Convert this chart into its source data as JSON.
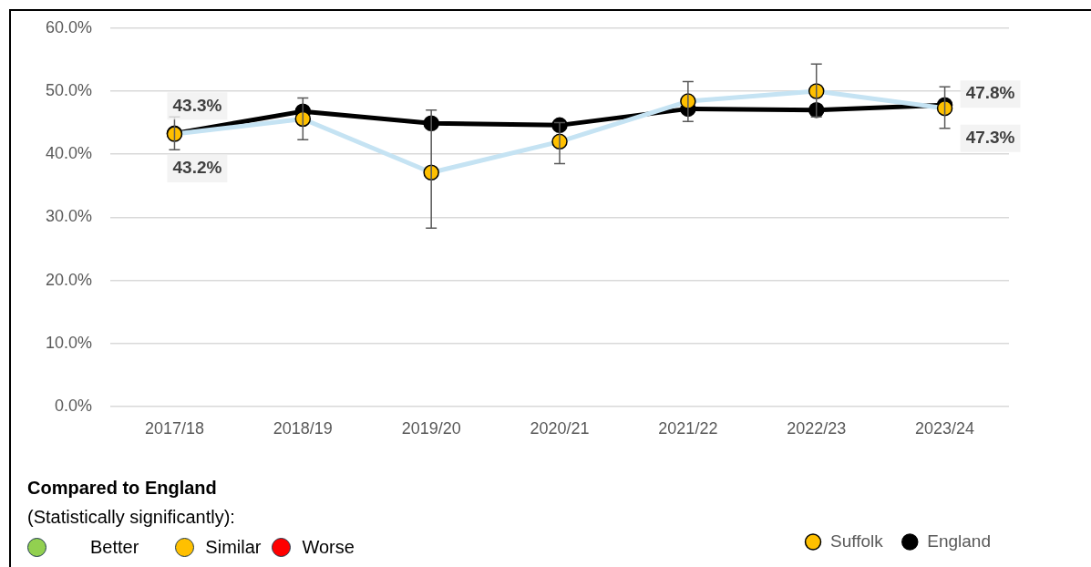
{
  "chart_data": {
    "type": "line",
    "categories": [
      "2017/18",
      "2018/19",
      "2019/20",
      "2020/21",
      "2021/22",
      "2022/23",
      "2023/24"
    ],
    "ylim": [
      0,
      60
    ],
    "yticks": [
      {
        "value": 0,
        "label": "0.0%"
      },
      {
        "value": 10,
        "label": "10.0%"
      },
      {
        "value": 20,
        "label": "20.0%"
      },
      {
        "value": 30,
        "label": "30.0%"
      },
      {
        "value": 40,
        "label": "40.0%"
      },
      {
        "value": 50,
        "label": "50.0%"
      },
      {
        "value": 60,
        "label": "60.0%"
      }
    ],
    "grid": "y",
    "legend": "bottom right",
    "marker": "circle",
    "line_style": "solid",
    "series": [
      {
        "name": "England",
        "color": "#000000",
        "values": [
          43.3,
          46.8,
          44.9,
          44.6,
          47.2,
          47.0,
          47.8
        ],
        "value_labels": [
          "43.3%",
          null,
          null,
          null,
          null,
          null,
          "47.8%"
        ]
      },
      {
        "name": "Suffolk",
        "color": "#c5e3f3",
        "colors": [
          "#ffc000",
          "#ffc000",
          "#ffc000",
          "#ffc000",
          "#ffc000",
          "#ffc000",
          "#ffc000"
        ],
        "values": [
          43.2,
          45.6,
          37.1,
          42.0,
          48.4,
          50.0,
          47.3
        ],
        "errors": [
          [
            40.7,
            45.9
          ],
          [
            42.3,
            48.9
          ],
          [
            28.3,
            47.0
          ],
          [
            38.5,
            45.0
          ],
          [
            45.2,
            51.5
          ],
          [
            45.9,
            54.3
          ],
          [
            44.1,
            50.7
          ]
        ],
        "value_labels": [
          "43.2%",
          null,
          null,
          null,
          null,
          null,
          "47.3%"
        ]
      }
    ],
    "annotations": [
      "Compared to England",
      "(Statistically significantly):",
      "Better",
      "Similar",
      "Worse"
    ]
  }
}
